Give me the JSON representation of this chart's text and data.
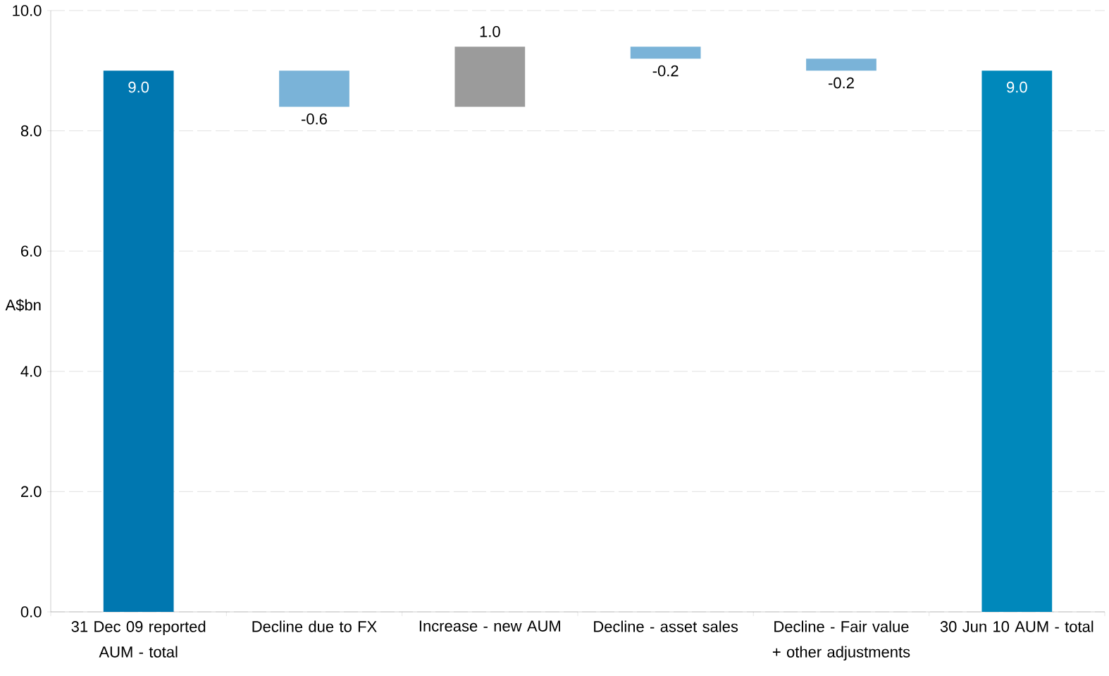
{
  "chart_data": {
    "type": "bar",
    "ylabel": "A$bn",
    "categories": [
      "31 Dec 09 reported AUM - total",
      "Decline due to FX",
      "Increase - new  AUM",
      "Decline - asset sales",
      "Decline - Fair value + other adjustments",
      "30 Jun 10 AUM - total"
    ],
    "values": [
      9.0,
      -0.6,
      1.0,
      -0.2,
      -0.2,
      9.0
    ],
    "base": [
      0,
      9.0,
      8.4,
      9.4,
      9.2,
      0
    ],
    "colors": [
      "#0077b0",
      "#7ab3d8",
      "#9b9b9b",
      "#7ab3d8",
      "#7ab3d8",
      "#0088bb"
    ],
    "ylim": [
      0,
      10
    ],
    "yticks": [
      {
        "value": 0,
        "label": "0.0"
      },
      {
        "value": 2,
        "label": "2.0"
      },
      {
        "value": 4,
        "label": "4.0"
      },
      {
        "value": 6,
        "label": "6.0"
      },
      {
        "value": 8,
        "label": "8.0"
      },
      {
        "value": 10,
        "label": "10.0"
      }
    ],
    "value_labels": [
      "9.0",
      "-0.6",
      "1.0",
      "-0.2",
      "-0.2",
      "9.0"
    ],
    "grid": "y"
  }
}
